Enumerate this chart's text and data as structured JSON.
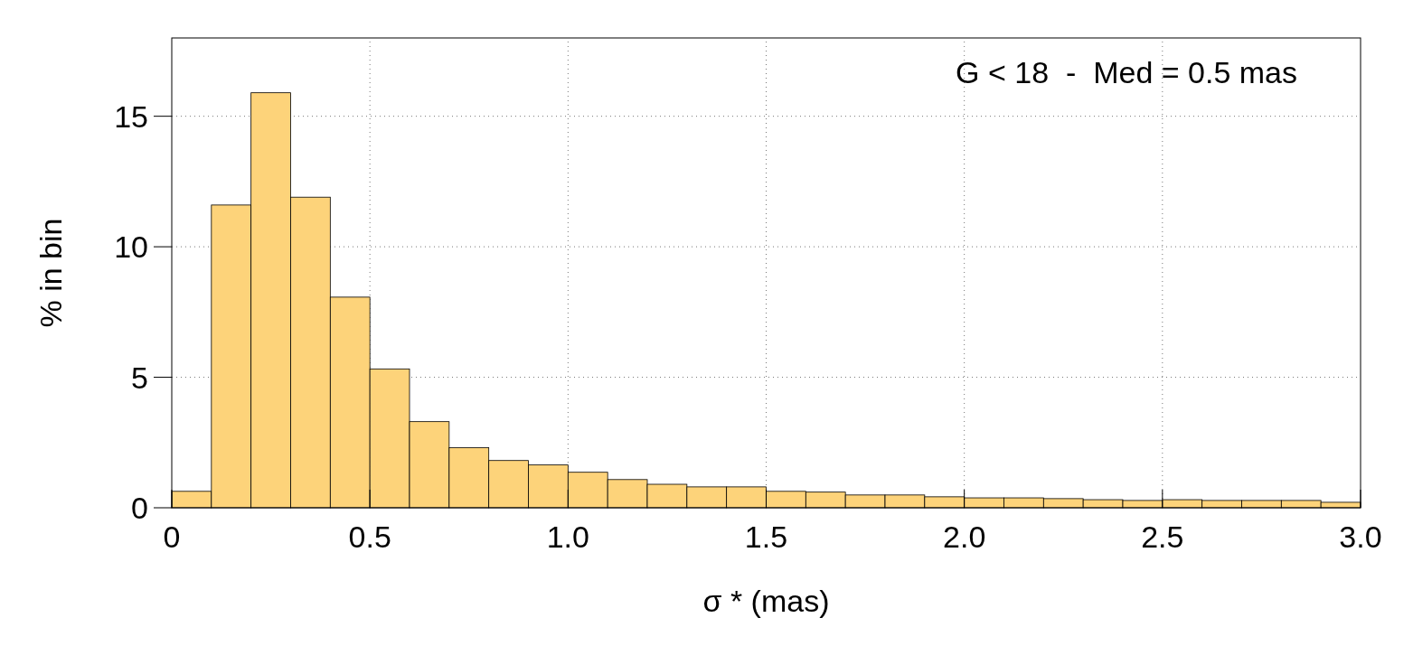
{
  "chart_data": {
    "type": "histogram",
    "xlabel": "σ *  (mas)",
    "ylabel": "% in bin",
    "annotations": [
      "G < 18  -  Med = 0.5 mas"
    ],
    "bins": [
      0,
      0.1,
      0.2,
      0.3,
      0.4,
      0.5,
      0.6,
      0.7,
      0.8,
      0.9,
      1.0,
      1.1,
      1.2,
      1.3,
      1.4,
      1.5,
      1.6,
      1.7,
      1.8,
      1.9,
      2.0,
      2.1,
      2.2,
      2.3,
      2.4,
      2.5,
      2.6,
      2.7,
      2.8,
      2.9,
      3.0
    ],
    "values": [
      0.63,
      11.6,
      15.9,
      11.9,
      8.07,
      5.32,
      3.3,
      2.3,
      1.81,
      1.64,
      1.36,
      1.08,
      0.9,
      0.8,
      0.8,
      0.63,
      0.6,
      0.49,
      0.49,
      0.42,
      0.38,
      0.38,
      0.35,
      0.31,
      0.28,
      0.31,
      0.28,
      0.28,
      0.28,
      0.21
    ],
    "color": "#fdd37a",
    "xlim": [
      0,
      3
    ],
    "ylim": [
      0,
      18
    ],
    "xticks": [
      0,
      0.5,
      {
        "value": 1,
        "label": "1.0"
      },
      1.5,
      {
        "value": 2,
        "label": "2.0"
      },
      2.5,
      {
        "value": 3,
        "label": "3.0"
      }
    ],
    "yticks": [
      0,
      5,
      10,
      15
    ],
    "grid": true
  }
}
